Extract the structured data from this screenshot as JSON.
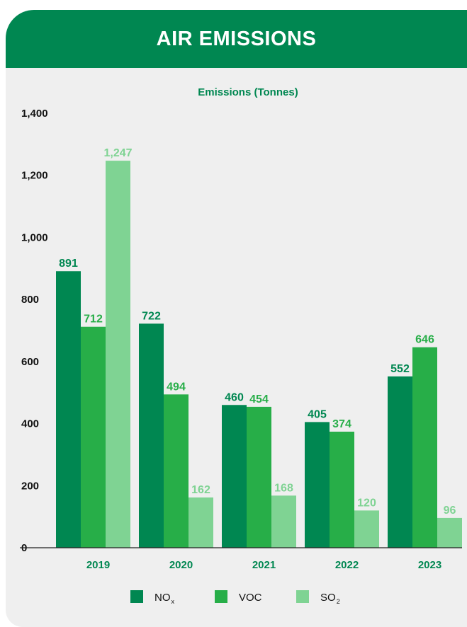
{
  "header": {
    "title": "AIR EMISSIONS"
  },
  "colors": {
    "banner": "#008751",
    "card": "#efefef"
  },
  "chart_data": {
    "type": "bar",
    "title": "Emissions (Tonnes)",
    "xlabel": "",
    "ylabel": "",
    "categories": [
      "2019",
      "2020",
      "2021",
      "2022",
      "2023"
    ],
    "series": [
      {
        "name": "NO",
        "subscript": "x",
        "color": "#008751",
        "label_color": "#008751",
        "values": [
          891,
          722,
          460,
          405,
          552
        ],
        "labels": [
          "891",
          "722",
          "460",
          "405",
          "552"
        ]
      },
      {
        "name": "VOC",
        "subscript": "",
        "color": "#27ae48",
        "label_color": "#27ae48",
        "values": [
          712,
          494,
          454,
          374,
          646
        ],
        "labels": [
          "712",
          "494",
          "454",
          "374",
          "646"
        ]
      },
      {
        "name": "SO",
        "subscript": "2",
        "color": "#7fd393",
        "label_color": "#7fd393",
        "values": [
          1247,
          162,
          168,
          120,
          96
        ],
        "labels": [
          "1,247",
          "162",
          "168",
          "120",
          "96"
        ]
      }
    ],
    "ylim": [
      0,
      1400
    ],
    "yticks": [
      0,
      200,
      400,
      600,
      800,
      1000,
      1200,
      1400
    ],
    "ytick_labels": [
      "0",
      "200",
      "400",
      "600",
      "800",
      "1,000",
      "1,200",
      "1,400"
    ],
    "grid": false,
    "legend_position": "bottom"
  }
}
